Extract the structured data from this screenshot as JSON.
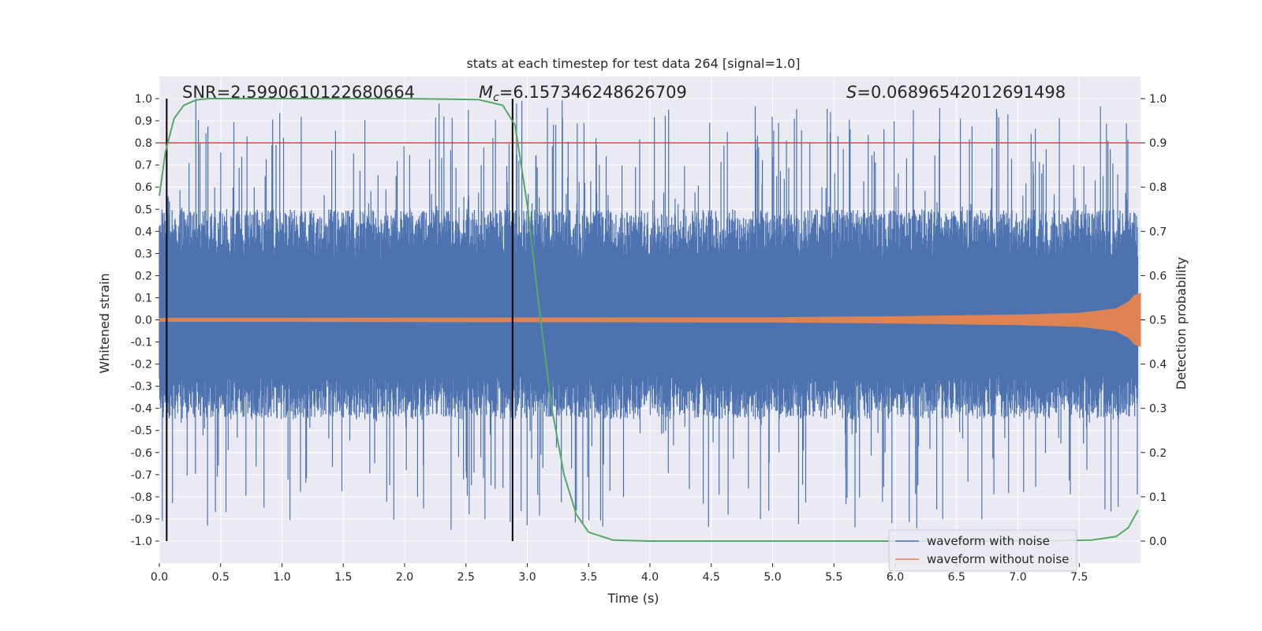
{
  "chart_data": {
    "type": "line",
    "title": "stats at each timestep for test data 264 [signal=1.0]",
    "xlabel": "Time (s)",
    "ylabel": "Whitened strain",
    "y2label": "Detection probability",
    "xlim": [
      0.0,
      8.0
    ],
    "ylim": [
      -1.1,
      1.1
    ],
    "y2lim": [
      -0.05,
      1.05
    ],
    "x_ticks": [
      0.0,
      0.5,
      1.0,
      1.5,
      2.0,
      2.5,
      3.0,
      3.5,
      4.0,
      4.5,
      5.0,
      5.5,
      6.0,
      6.5,
      7.0,
      7.5
    ],
    "x_tick_labels": [
      "0.0",
      "0.5",
      "1.0",
      "1.5",
      "2.0",
      "2.5",
      "3.0",
      "3.5",
      "4.0",
      "4.5",
      "5.0",
      "5.5",
      "6.0",
      "6.5",
      "7.0",
      "7.5"
    ],
    "y_ticks": [
      1.0,
      0.9,
      0.8,
      0.7,
      0.6,
      0.5,
      0.4,
      0.3,
      0.2,
      0.1,
      0.0,
      -0.1,
      -0.2,
      -0.3,
      -0.4,
      -0.5,
      -0.6,
      -0.7,
      -0.8,
      -0.9,
      -1.0
    ],
    "y_tick_labels": [
      "1.0",
      "0.9",
      "0.8",
      "0.7",
      "0.6",
      "0.5",
      "0.4",
      "0.3",
      "0.2",
      "0.1",
      "0.0",
      "-0.1",
      "-0.2",
      "-0.3",
      "-0.4",
      "-0.5",
      "-0.6",
      "-0.7",
      "-0.8",
      "-0.9",
      "-1.0"
    ],
    "y2_ticks": [
      1.0,
      0.9,
      0.8,
      0.7,
      0.6,
      0.5,
      0.4,
      0.3,
      0.2,
      0.1,
      0.0
    ],
    "y2_tick_labels": [
      "1.0",
      "0.9",
      "0.8",
      "0.7",
      "0.6",
      "0.5",
      "0.4",
      "0.3",
      "0.2",
      "0.1",
      "0.0"
    ],
    "stats": {
      "snr": "SNR=2.5990610122680664",
      "mc_symbol": "M",
      "mc_sub": "c",
      "mc_value": "=6.157346248626709",
      "s_symbol": "S",
      "s_value": "=0.06896542012691498"
    },
    "threshold_y2": 0.9,
    "vertical_lines_x": [
      0.06,
      2.88
    ],
    "series": [
      {
        "name": "waveform with noise",
        "color": "#4c72b0",
        "amplitude_range": [
          -0.95,
          1.0
        ],
        "typical_range": [
          -0.45,
          0.5
        ]
      },
      {
        "name": "waveform without noise",
        "color": "#dd8452",
        "envelope_x": [
          0.0,
          5.0,
          6.0,
          7.0,
          7.5,
          7.8,
          7.9,
          7.95,
          8.0
        ],
        "envelope_y": [
          0.007,
          0.01,
          0.015,
          0.022,
          0.03,
          0.05,
          0.08,
          0.11,
          0.12
        ]
      },
      {
        "name": "detection probability",
        "color": "#55a868",
        "axis": "y2",
        "x": [
          0.0,
          0.05,
          0.12,
          0.2,
          0.3,
          0.4,
          0.6,
          1.0,
          2.0,
          2.6,
          2.8,
          2.9,
          3.0,
          3.1,
          3.2,
          3.3,
          3.4,
          3.5,
          3.7,
          4.0,
          5.0,
          6.0,
          7.0,
          7.6,
          7.8,
          7.9,
          7.98
        ],
        "y": [
          0.78,
          0.88,
          0.955,
          0.985,
          0.997,
          1.0,
          1.0,
          1.0,
          1.0,
          0.998,
          0.985,
          0.94,
          0.76,
          0.52,
          0.3,
          0.15,
          0.06,
          0.02,
          0.002,
          0.0,
          0.0,
          0.0,
          0.0,
          0.002,
          0.01,
          0.03,
          0.07
        ]
      }
    ],
    "legend": [
      "waveform with noise",
      "waveform without noise"
    ],
    "legend_position": "lower-right",
    "grid": true
  }
}
